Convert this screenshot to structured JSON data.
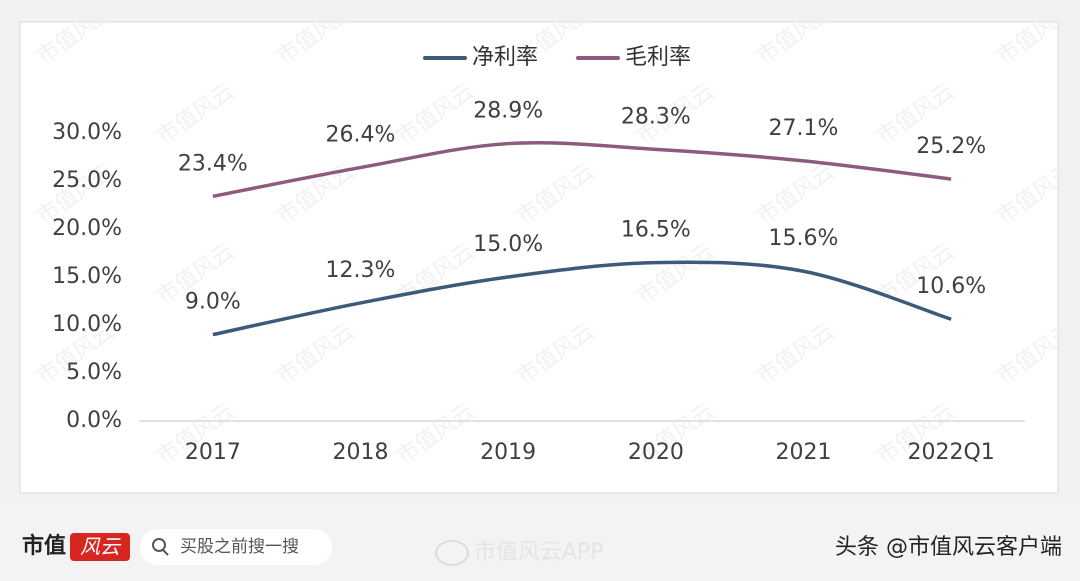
{
  "chart_data": {
    "type": "line",
    "categories": [
      "2017",
      "2018",
      "2019",
      "2020",
      "2021",
      "2022Q1"
    ],
    "series": [
      {
        "name": "净利率",
        "color": "#3d5a7a",
        "values": [
          9.0,
          12.3,
          15.0,
          16.5,
          15.6,
          10.6
        ],
        "value_labels": [
          "9.0%",
          "12.3%",
          "15.0%",
          "16.5%",
          "15.6%",
          "10.6%"
        ]
      },
      {
        "name": "毛利率",
        "color": "#8e5a7e",
        "values": [
          23.4,
          26.4,
          28.9,
          28.3,
          27.1,
          25.2
        ],
        "value_labels": [
          "23.4%",
          "26.4%",
          "28.9%",
          "28.3%",
          "27.1%",
          "25.2%"
        ]
      }
    ],
    "ylim": [
      0,
      30
    ],
    "yticks": [
      {
        "value": 0,
        "label": "0.0%"
      },
      {
        "value": 5,
        "label": "5.0%"
      },
      {
        "value": 10,
        "label": "10.0%"
      },
      {
        "value": 15,
        "label": "15.0%"
      },
      {
        "value": 20,
        "label": "20.0%"
      },
      {
        "value": 25,
        "label": "25.0%"
      },
      {
        "value": 30,
        "label": "30.0%"
      }
    ],
    "legend": "top",
    "grid": false
  },
  "watermark": "市值风云",
  "footer": {
    "brand": "市值",
    "logo": "风云",
    "search": "买股之前搜一搜",
    "app": "市值风云APP",
    "source": "头条 @市值风云客户端"
  }
}
